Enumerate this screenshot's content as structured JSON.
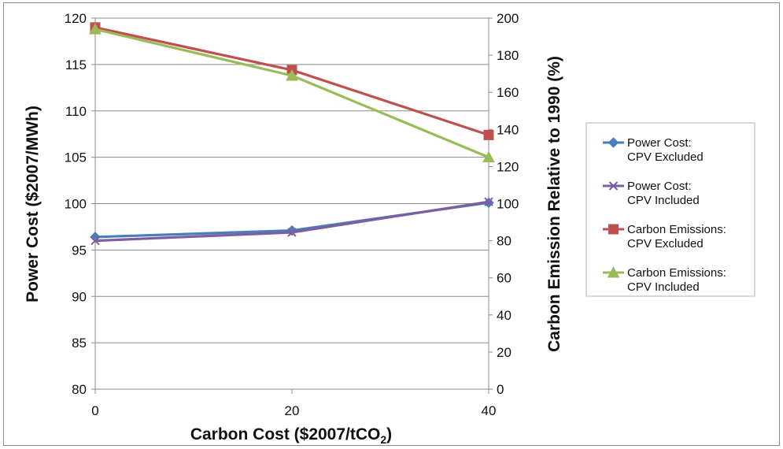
{
  "chart_data": {
    "type": "line",
    "x_axis": {
      "title": "Carbon Cost ($2007/tCO",
      "title_subscript": "2",
      "title_suffix": ")",
      "ticks": [
        "0",
        "20",
        "40"
      ],
      "range": [
        0,
        40
      ]
    },
    "y_left": {
      "title": "Power Cost ($2007/MWh)",
      "range": [
        80,
        120
      ],
      "ticks": [
        "80",
        "85",
        "90",
        "95",
        "100",
        "105",
        "110",
        "115",
        "120"
      ]
    },
    "y_right": {
      "title": "Carbon Emission Relative to 1990 (%)",
      "range": [
        0,
        200
      ],
      "ticks": [
        "0",
        "20",
        "40",
        "60",
        "80",
        "100",
        "120",
        "140",
        "160",
        "180",
        "200"
      ]
    },
    "x": [
      0,
      20,
      40
    ],
    "series": [
      {
        "name_line1": "Power Cost:",
        "name_line2": "CPV Excluded",
        "axis": "left",
        "marker": "diamond",
        "color": "#4a7ebb",
        "values": [
          96.4,
          97.1,
          100.1
        ]
      },
      {
        "name_line1": "Power Cost:",
        "name_line2": "CPV Included",
        "axis": "left",
        "marker": "x",
        "color": "#7d5fa0",
        "values": [
          96.0,
          96.9,
          100.2
        ]
      },
      {
        "name_line1": "Carbon Emissions:",
        "name_line2": "CPV Excluded",
        "axis": "right",
        "marker": "square",
        "color": "#c0504d",
        "values": [
          195,
          172,
          137
        ]
      },
      {
        "name_line1": "Carbon Emissions:",
        "name_line2": "CPV Included",
        "axis": "right",
        "marker": "triangle",
        "color": "#9bbb59",
        "values": [
          194,
          169,
          125
        ]
      }
    ],
    "grid": "horizontal",
    "legend_position": "right"
  }
}
